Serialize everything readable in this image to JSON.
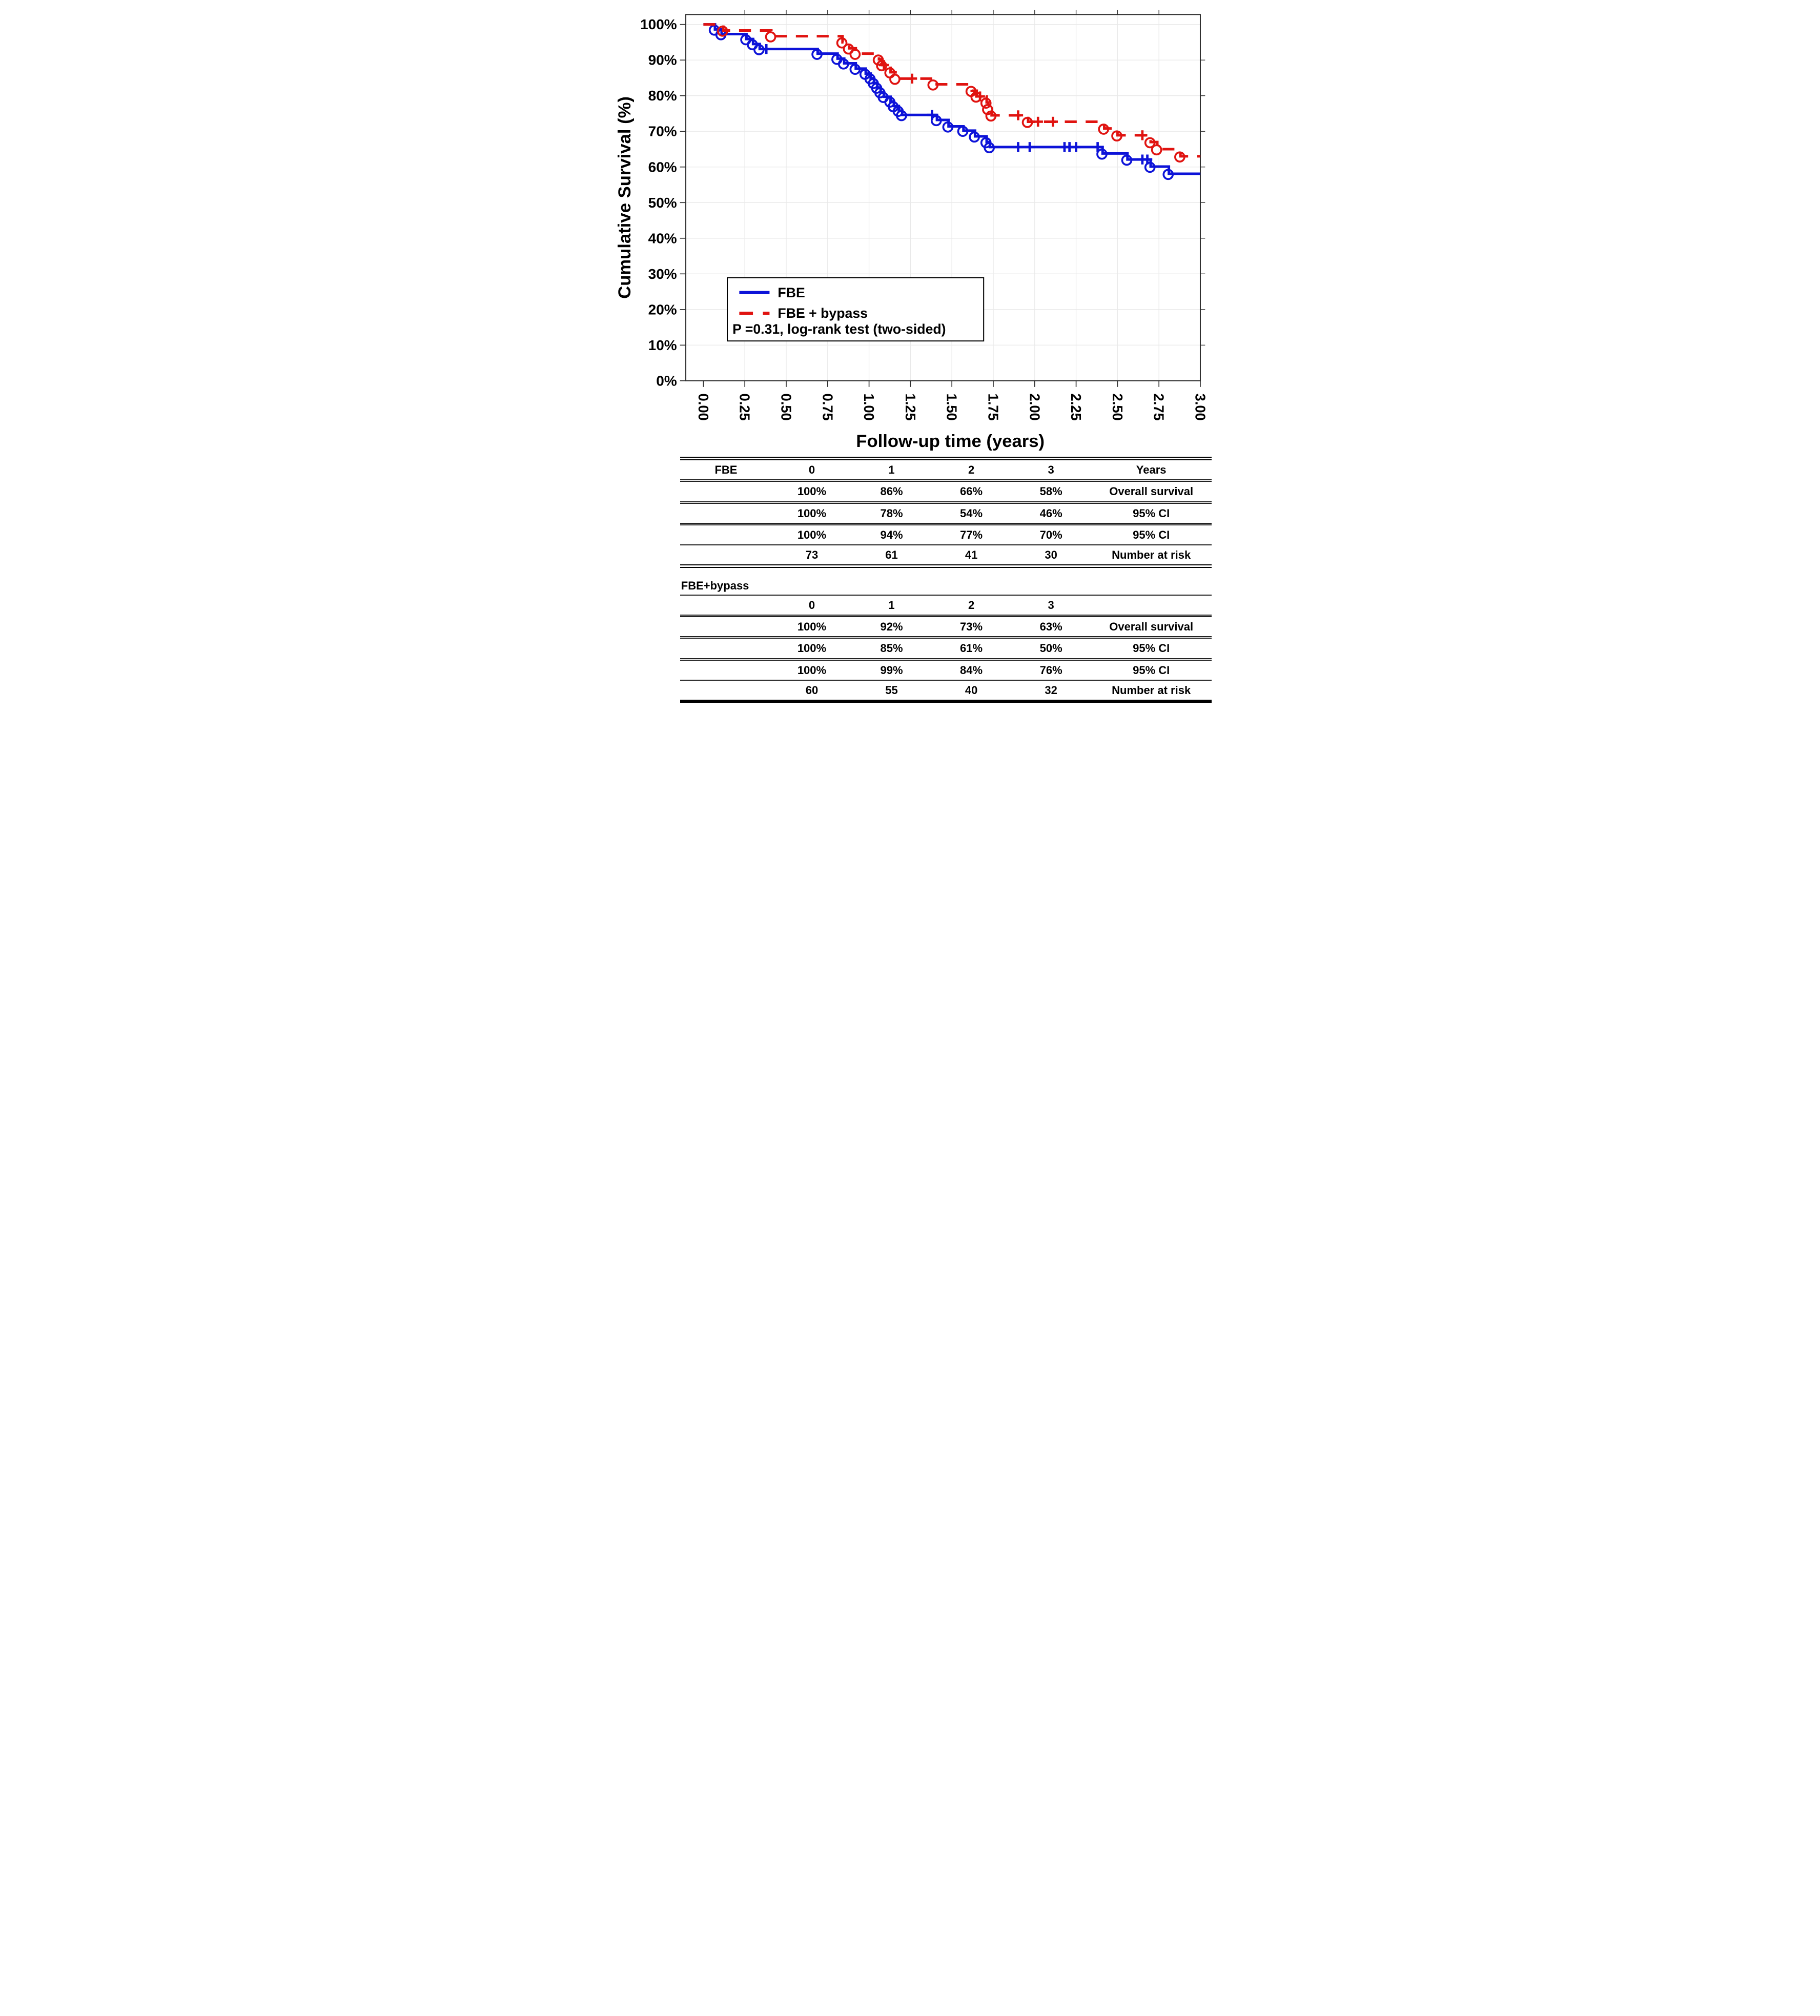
{
  "chart_data": {
    "type": "line",
    "subtype": "kaplan-meier-step",
    "title": "",
    "ylabel": "Cumulative Survival (%)",
    "xlabel": "Follow-up time (years)",
    "xlim": [
      0,
      3
    ],
    "ylim": [
      0,
      100
    ],
    "grid": true,
    "xtick_labels": [
      "0.00",
      "0.25",
      "0.50",
      "0.75",
      "1.00",
      "1.25",
      "1.50",
      "1.75",
      "2.00",
      "2.25",
      "2.50",
      "2.75",
      "3.00"
    ],
    "ytick_labels": [
      "0%",
      "10%",
      "20%",
      "30%",
      "40%",
      "50%",
      "60%",
      "70%",
      "80%",
      "90%",
      "100%"
    ],
    "stats_note": "P =0.31, log-rank test (two-sided)",
    "legend_position": "lower-left-box",
    "colors": {
      "fbe_blue": "#0d13d8",
      "bypass_red": "#e01310",
      "gridline": "#e9e9e9",
      "axis": "#2e2e2e"
    },
    "series": [
      {
        "name": "FBE",
        "color": "#0d13d8",
        "dash": false,
        "start": [
          0,
          100
        ],
        "end_time": 3.0,
        "drops": [
          [
            0.07,
            98.6
          ],
          [
            0.11,
            97.3
          ],
          [
            0.26,
            95.9
          ],
          [
            0.3,
            94.5
          ],
          [
            0.34,
            93.1
          ],
          [
            0.69,
            91.8
          ],
          [
            0.81,
            90.4
          ],
          [
            0.85,
            89.1
          ],
          [
            0.92,
            87.6
          ],
          [
            0.98,
            86.2
          ],
          [
            1.01,
            84.9
          ],
          [
            1.03,
            83.6
          ],
          [
            1.05,
            82.3
          ],
          [
            1.07,
            81.0
          ],
          [
            1.09,
            79.7
          ],
          [
            1.13,
            78.4
          ],
          [
            1.15,
            77.1
          ],
          [
            1.18,
            75.8
          ],
          [
            1.2,
            74.6
          ],
          [
            1.41,
            73.2
          ],
          [
            1.48,
            71.4
          ],
          [
            1.57,
            70.2
          ],
          [
            1.64,
            68.6
          ],
          [
            1.71,
            67.0
          ],
          [
            1.73,
            65.6
          ],
          [
            2.41,
            63.8
          ],
          [
            2.56,
            62.1
          ],
          [
            2.7,
            60.1
          ],
          [
            2.81,
            58.1
          ]
        ],
        "censors": [
          [
            0.38,
            93.1
          ],
          [
            1.38,
            74.6
          ],
          [
            1.9,
            65.6
          ],
          [
            1.97,
            65.6
          ],
          [
            2.18,
            65.6
          ],
          [
            2.21,
            65.6
          ],
          [
            2.25,
            65.6
          ],
          [
            2.38,
            65.6
          ],
          [
            2.65,
            62.1
          ],
          [
            2.68,
            62.1
          ]
        ]
      },
      {
        "name": "FBE + bypass",
        "color": "#e01310",
        "dash": true,
        "start": [
          0,
          100
        ],
        "end_time": 3.0,
        "drops": [
          [
            0.12,
            98.3
          ],
          [
            0.41,
            96.7
          ],
          [
            0.84,
            95.0
          ],
          [
            0.88,
            93.3
          ],
          [
            0.92,
            91.8
          ],
          [
            1.06,
            90.2
          ],
          [
            1.08,
            88.6
          ],
          [
            1.13,
            86.6
          ],
          [
            1.16,
            84.8
          ],
          [
            1.39,
            83.2
          ],
          [
            1.62,
            81.4
          ],
          [
            1.65,
            79.8
          ],
          [
            1.71,
            78.1
          ],
          [
            1.72,
            76.3
          ],
          [
            1.74,
            74.5
          ],
          [
            1.96,
            72.7
          ],
          [
            2.42,
            70.8
          ],
          [
            2.5,
            68.9
          ],
          [
            2.7,
            67.0
          ],
          [
            2.74,
            65.0
          ],
          [
            2.88,
            63.0
          ]
        ],
        "censors": [
          [
            1.09,
            88.6
          ],
          [
            1.26,
            84.8
          ],
          [
            1.67,
            79.8
          ],
          [
            1.9,
            74.5
          ],
          [
            2.02,
            72.7
          ],
          [
            2.11,
            72.7
          ],
          [
            2.65,
            68.9
          ]
        ]
      }
    ]
  },
  "risk_table": {
    "sections": [
      {
        "group": "FBE",
        "inline_header": true,
        "col_header": "Years",
        "time_points": [
          "0",
          "1",
          "2",
          "3"
        ],
        "rows": [
          {
            "cells": [
              "100%",
              "86%",
              "66%",
              "58%"
            ],
            "label": "Overall survival"
          },
          {
            "cells": [
              "100%",
              "78%",
              "54%",
              "46%"
            ],
            "label": "95% CI"
          },
          {
            "cells": [
              "100%",
              "94%",
              "77%",
              "70%"
            ],
            "label": "95% CI"
          },
          {
            "cells": [
              "73",
              "61",
              "41",
              "30"
            ],
            "label": "Number at risk"
          }
        ]
      },
      {
        "group": "FBE+bypass",
        "inline_header": false,
        "col_header": "",
        "time_points": [
          "0",
          "1",
          "2",
          "3"
        ],
        "rows": [
          {
            "cells": [
              "100%",
              "92%",
              "73%",
              "63%"
            ],
            "label": "Overall survival"
          },
          {
            "cells": [
              "100%",
              "85%",
              "61%",
              "50%"
            ],
            "label": "95% CI"
          },
          {
            "cells": [
              "100%",
              "99%",
              "84%",
              "76%"
            ],
            "label": "95% CI"
          },
          {
            "cells": [
              "60",
              "55",
              "40",
              "32"
            ],
            "label": "Number at risk"
          }
        ]
      }
    ]
  }
}
